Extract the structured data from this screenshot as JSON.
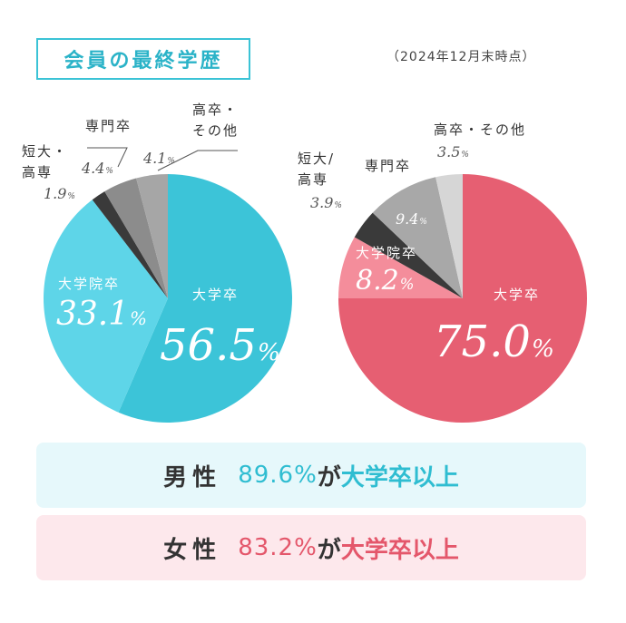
{
  "header": {
    "title": "会員の最終学歴",
    "date_note": "（2024年12月末時点）"
  },
  "colors": {
    "male_main": "#3cc4d8",
    "male_grad": "#5ed5e8",
    "female_main": "#e65f72",
    "female_grad": "#f48d9b",
    "junior": "#3a3a3a",
    "vocational": "#8c8c8c",
    "other_male": "#a6a6a6",
    "vocational_female": "#a8a8a8",
    "other_female": "#d6d6d6"
  },
  "chart_data": [
    {
      "type": "pie",
      "name": "男性",
      "slices": [
        {
          "label": "大学卒",
          "value": 56.5,
          "color": "#3cc4d8"
        },
        {
          "label": "大学院卒",
          "value": 33.1,
          "color": "#5ed5e8"
        },
        {
          "label": "短大・高専",
          "value": 1.9,
          "color": "#3a3a3a"
        },
        {
          "label": "専門卒",
          "value": 4.4,
          "color": "#8c8c8c"
        },
        {
          "label": "高卒・その他",
          "value": 4.1,
          "color": "#a6a6a6"
        }
      ],
      "labels": {
        "univ": "大学卒",
        "univ_pct": "56.5",
        "grad_line1": "大学院卒",
        "grad_pct": "33.1",
        "junior_line1": "短大・",
        "junior_line2": "高専",
        "junior_pct": "1.9",
        "voc_line1": "専門卒",
        "voc_pct": "4.4",
        "other_line1": "高卒・",
        "other_line2": "その他",
        "other_pct": "4.1",
        "unit": "%"
      }
    },
    {
      "type": "pie",
      "name": "女性",
      "slices": [
        {
          "label": "大学卒",
          "value": 75.0,
          "color": "#e65f72"
        },
        {
          "label": "大学院卒",
          "value": 8.2,
          "color": "#f48d9b"
        },
        {
          "label": "短大/高専",
          "value": 3.9,
          "color": "#3a3a3a"
        },
        {
          "label": "専門卒",
          "value": 9.4,
          "color": "#a8a8a8"
        },
        {
          "label": "高卒・その他",
          "value": 3.5,
          "color": "#d6d6d6"
        }
      ],
      "labels": {
        "univ": "大学卒",
        "univ_pct": "75.0",
        "grad_line1": "大学院卒",
        "grad_pct": "8.2",
        "junior_line1": "短大/",
        "junior_line2": "高専",
        "junior_pct": "3.9",
        "voc_line1": "専門卒",
        "voc_pct": "9.4",
        "other_line1": "高卒・その他",
        "other_pct": "3.5",
        "unit": "%"
      }
    }
  ],
  "summary": {
    "male": {
      "gender": "男性",
      "value": "89.6%",
      "mid": "が",
      "tail": "大学卒以上"
    },
    "female": {
      "gender": "女性",
      "value": "83.2%",
      "mid": "が",
      "tail": "大学卒以上"
    }
  }
}
